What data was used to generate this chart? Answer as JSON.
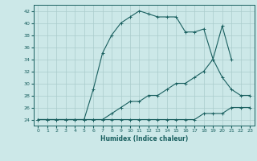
{
  "xlabel": "Humidex (Indice chaleur)",
  "background_color": "#cce8e8",
  "grid_color": "#aacccc",
  "line_color": "#1a6060",
  "xlim": [
    -0.5,
    23.5
  ],
  "ylim": [
    23,
    43
  ],
  "xticks": [
    0,
    1,
    2,
    3,
    4,
    5,
    6,
    7,
    8,
    9,
    10,
    11,
    12,
    13,
    14,
    15,
    16,
    17,
    18,
    19,
    20,
    21,
    22,
    23
  ],
  "yticks": [
    24,
    26,
    28,
    30,
    32,
    34,
    36,
    38,
    40,
    42
  ],
  "line1_x": [
    0,
    1,
    2,
    3,
    4,
    5,
    6,
    7,
    8,
    9,
    10,
    11,
    12,
    13,
    14,
    15,
    16,
    17,
    18,
    19,
    20,
    21,
    22,
    23
  ],
  "line1_y": [
    24,
    24,
    24,
    24,
    24,
    24,
    24,
    24,
    24,
    24,
    24,
    24,
    24,
    24,
    24,
    24,
    24,
    24,
    25,
    25,
    25,
    26,
    26,
    26
  ],
  "line2_x": [
    0,
    1,
    2,
    3,
    4,
    5,
    6,
    7,
    8,
    9,
    10,
    11,
    12,
    13,
    14,
    15,
    16,
    17,
    18,
    19,
    20,
    21,
    22,
    23
  ],
  "line2_y": [
    24,
    24,
    24,
    24,
    24,
    24,
    24,
    24,
    25,
    26,
    27,
    27,
    28,
    28,
    29,
    30,
    30,
    31,
    32,
    34,
    31,
    29,
    28,
    28
  ],
  "line3_x": [
    0,
    1,
    2,
    3,
    4,
    5,
    6,
    7,
    8,
    9,
    10,
    11,
    12,
    13,
    14,
    15,
    16,
    17,
    18,
    19,
    20,
    21,
    22,
    23
  ],
  "line3_y": [
    24,
    24,
    24,
    24,
    24,
    24,
    29,
    35,
    38,
    40,
    41,
    42,
    41.5,
    41,
    41,
    41,
    38.5,
    38.5,
    39,
    34,
    39.5,
    34,
    null,
    null
  ]
}
